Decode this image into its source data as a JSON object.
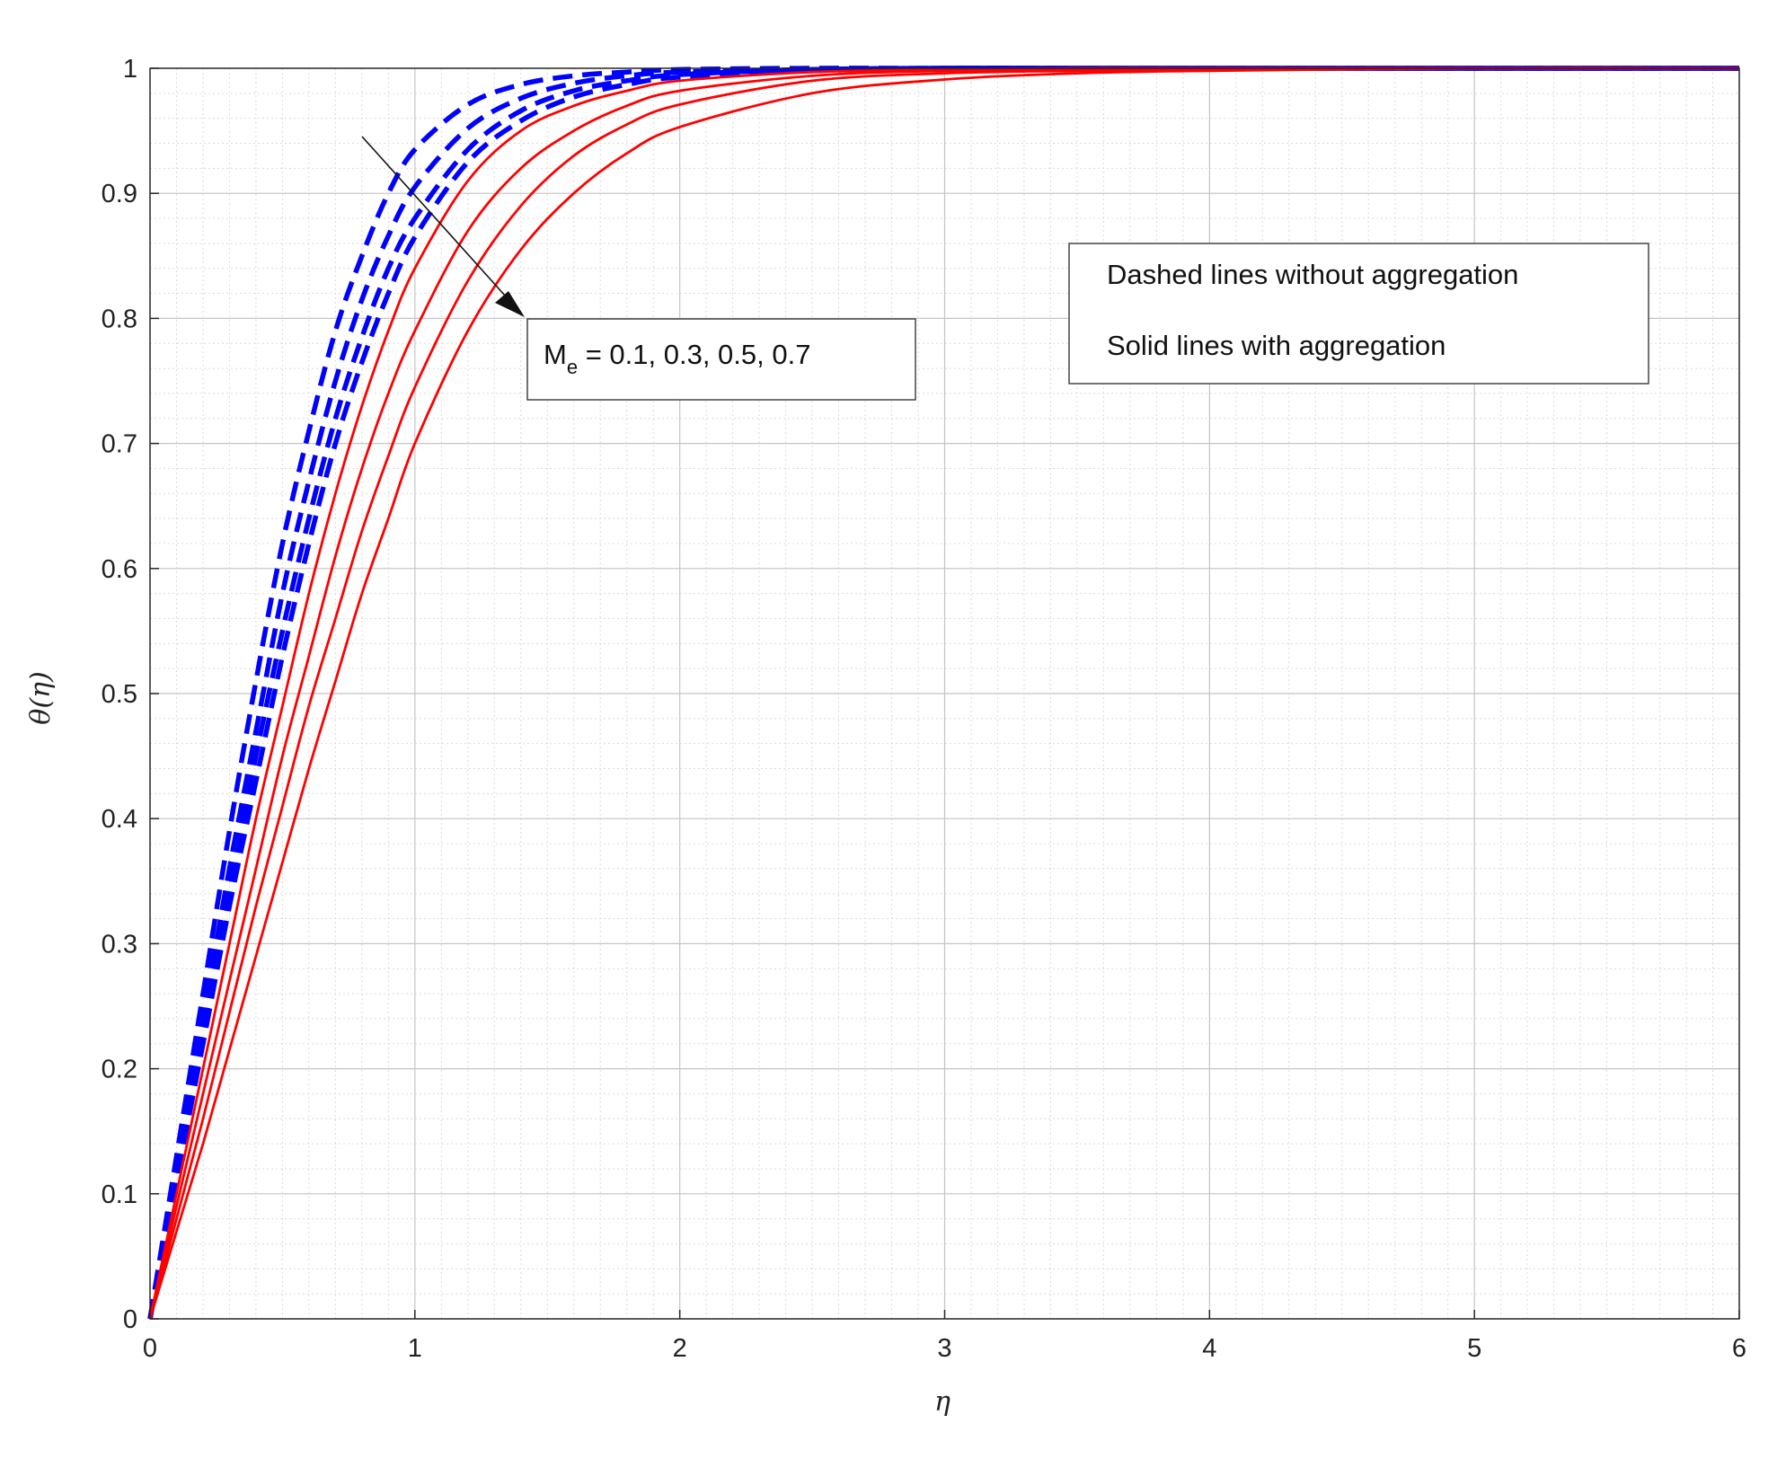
{
  "chart_data": {
    "type": "line",
    "xlabel": "η",
    "ylabel": "θ(η)",
    "xlim": [
      0,
      6
    ],
    "ylim": [
      0,
      1
    ],
    "x_ticks": [
      "0",
      "1",
      "2",
      "3",
      "4",
      "5",
      "6"
    ],
    "y_ticks": [
      "0",
      "0.1",
      "0.2",
      "0.3",
      "0.4",
      "0.5",
      "0.6",
      "0.7",
      "0.8",
      "0.9",
      "1"
    ],
    "grid": "on",
    "minor_grid": "on",
    "colors": {
      "dashed": "#0000ff",
      "solid": "#ff0000"
    },
    "x": [
      0,
      0.1,
      0.2,
      0.3,
      0.4,
      0.5,
      0.6,
      0.7,
      0.8,
      0.9,
      1.0,
      1.2,
      1.4,
      1.6,
      1.8,
      2.0,
      2.5,
      3.0,
      3.5,
      4.0,
      5.0,
      6.0
    ],
    "series": [
      {
        "style": "dashed",
        "values": [
          0,
          0.13,
          0.26,
          0.39,
          0.51,
          0.62,
          0.71,
          0.79,
          0.85,
          0.9,
          0.935,
          0.971,
          0.987,
          0.994,
          0.997,
          0.999,
          1.0,
          1.0,
          1.0,
          1.0,
          1.0,
          1.0
        ]
      },
      {
        "style": "dashed",
        "values": [
          0,
          0.12,
          0.24,
          0.36,
          0.47,
          0.58,
          0.67,
          0.75,
          0.815,
          0.866,
          0.905,
          0.952,
          0.976,
          0.988,
          0.994,
          0.997,
          0.999,
          1.0,
          1.0,
          1.0,
          1.0,
          1.0
        ]
      },
      {
        "style": "dashed",
        "values": [
          0,
          0.115,
          0.23,
          0.34,
          0.45,
          0.55,
          0.64,
          0.72,
          0.785,
          0.84,
          0.88,
          0.935,
          0.966,
          0.982,
          0.99,
          0.995,
          0.999,
          1.0,
          1.0,
          1.0,
          1.0,
          1.0
        ]
      },
      {
        "style": "dashed",
        "values": [
          0,
          0.11,
          0.22,
          0.33,
          0.43,
          0.53,
          0.62,
          0.7,
          0.765,
          0.82,
          0.865,
          0.925,
          0.958,
          0.977,
          0.987,
          0.993,
          0.998,
          1.0,
          1.0,
          1.0,
          1.0,
          1.0
        ]
      },
      {
        "style": "solid",
        "values": [
          0,
          0.1,
          0.2,
          0.3,
          0.4,
          0.49,
          0.58,
          0.66,
          0.73,
          0.79,
          0.84,
          0.91,
          0.95,
          0.97,
          0.982,
          0.99,
          0.997,
          0.999,
          1.0,
          1.0,
          1.0,
          1.0
        ]
      },
      {
        "style": "solid",
        "values": [
          0,
          0.09,
          0.18,
          0.27,
          0.36,
          0.45,
          0.53,
          0.61,
          0.68,
          0.74,
          0.79,
          0.87,
          0.92,
          0.95,
          0.97,
          0.982,
          0.994,
          0.998,
          0.999,
          1.0,
          1.0,
          1.0
        ]
      },
      {
        "style": "solid",
        "values": [
          0,
          0.08,
          0.16,
          0.245,
          0.33,
          0.41,
          0.49,
          0.56,
          0.63,
          0.69,
          0.745,
          0.83,
          0.89,
          0.93,
          0.955,
          0.971,
          0.99,
          0.996,
          0.998,
          0.999,
          1.0,
          1.0
        ]
      },
      {
        "style": "solid",
        "values": [
          0,
          0.07,
          0.14,
          0.215,
          0.29,
          0.365,
          0.44,
          0.51,
          0.58,
          0.64,
          0.7,
          0.79,
          0.855,
          0.9,
          0.932,
          0.953,
          0.98,
          0.991,
          0.996,
          0.998,
          1.0,
          1.0
        ]
      }
    ],
    "annotation": {
      "symbol": "M",
      "subscript": "e",
      "text": " = 0.1, 0.3, 0.5, 0.7"
    },
    "notes": [
      "Dashed lines without aggregation",
      "Solid lines with aggregation"
    ]
  }
}
